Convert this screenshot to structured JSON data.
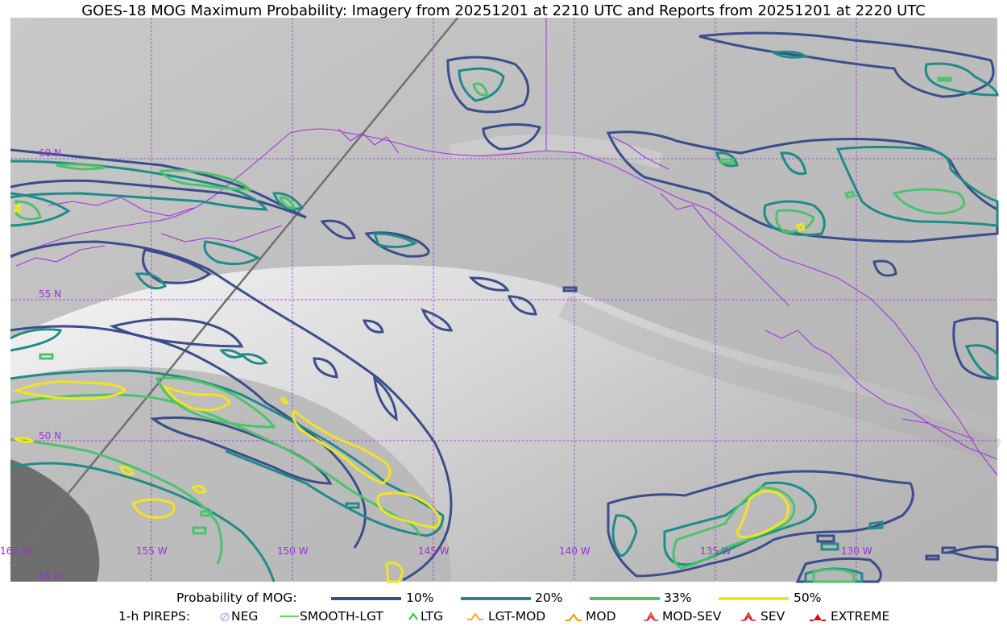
{
  "title": "GOES-18 MOG Maximum Probability: Imagery from 20251201 at 2210 UTC and Reports from 20251201 at 2220 UTC",
  "map": {
    "lat_labels": [
      "60 N",
      "55 N",
      "50 N",
      "45 N"
    ],
    "lon_labels": [
      "160 W",
      "155 W",
      "150 W",
      "145 W",
      "140 W",
      "135 W",
      "130 W"
    ],
    "colors": {
      "graticule": "#9b30d9",
      "coastline": "#a534e0",
      "p10": "#3b4d8c",
      "p20": "#1f8c88",
      "p33": "#4cc36a",
      "p50": "#f2e41f",
      "satellite_track": "#707070"
    }
  },
  "legend": {
    "probability_label": "Probability of MOG:",
    "levels": [
      {
        "label": "10%",
        "color": "#3b4d8c"
      },
      {
        "label": "20%",
        "color": "#1f8c88"
      },
      {
        "label": "33%",
        "color": "#4cc36a"
      },
      {
        "label": "50%",
        "color": "#f2e41f"
      }
    ],
    "pireps_label": "1-h PIREPS:",
    "pireps": [
      {
        "label": "NEG",
        "icon": "neg-icon",
        "color": "#b8b8f0"
      },
      {
        "label": "SMOOTH-LGT",
        "icon": "smooth-lgt-icon",
        "color": "#34c934"
      },
      {
        "label": "LTG",
        "icon": "ltg-icon",
        "color": "#1ecf1e"
      },
      {
        "label": "LGT-MOD",
        "icon": "lgt-mod-icon",
        "color": "#f0b020"
      },
      {
        "label": "MOD",
        "icon": "mod-icon",
        "color": "#f0a000"
      },
      {
        "label": "MOD-SEV",
        "icon": "mod-sev-icon",
        "color": "#e83030"
      },
      {
        "label": "SEV",
        "icon": "sev-icon",
        "color": "#e02020"
      },
      {
        "label": "EXTREME",
        "icon": "extreme-icon",
        "color": "#e01010"
      }
    ]
  }
}
